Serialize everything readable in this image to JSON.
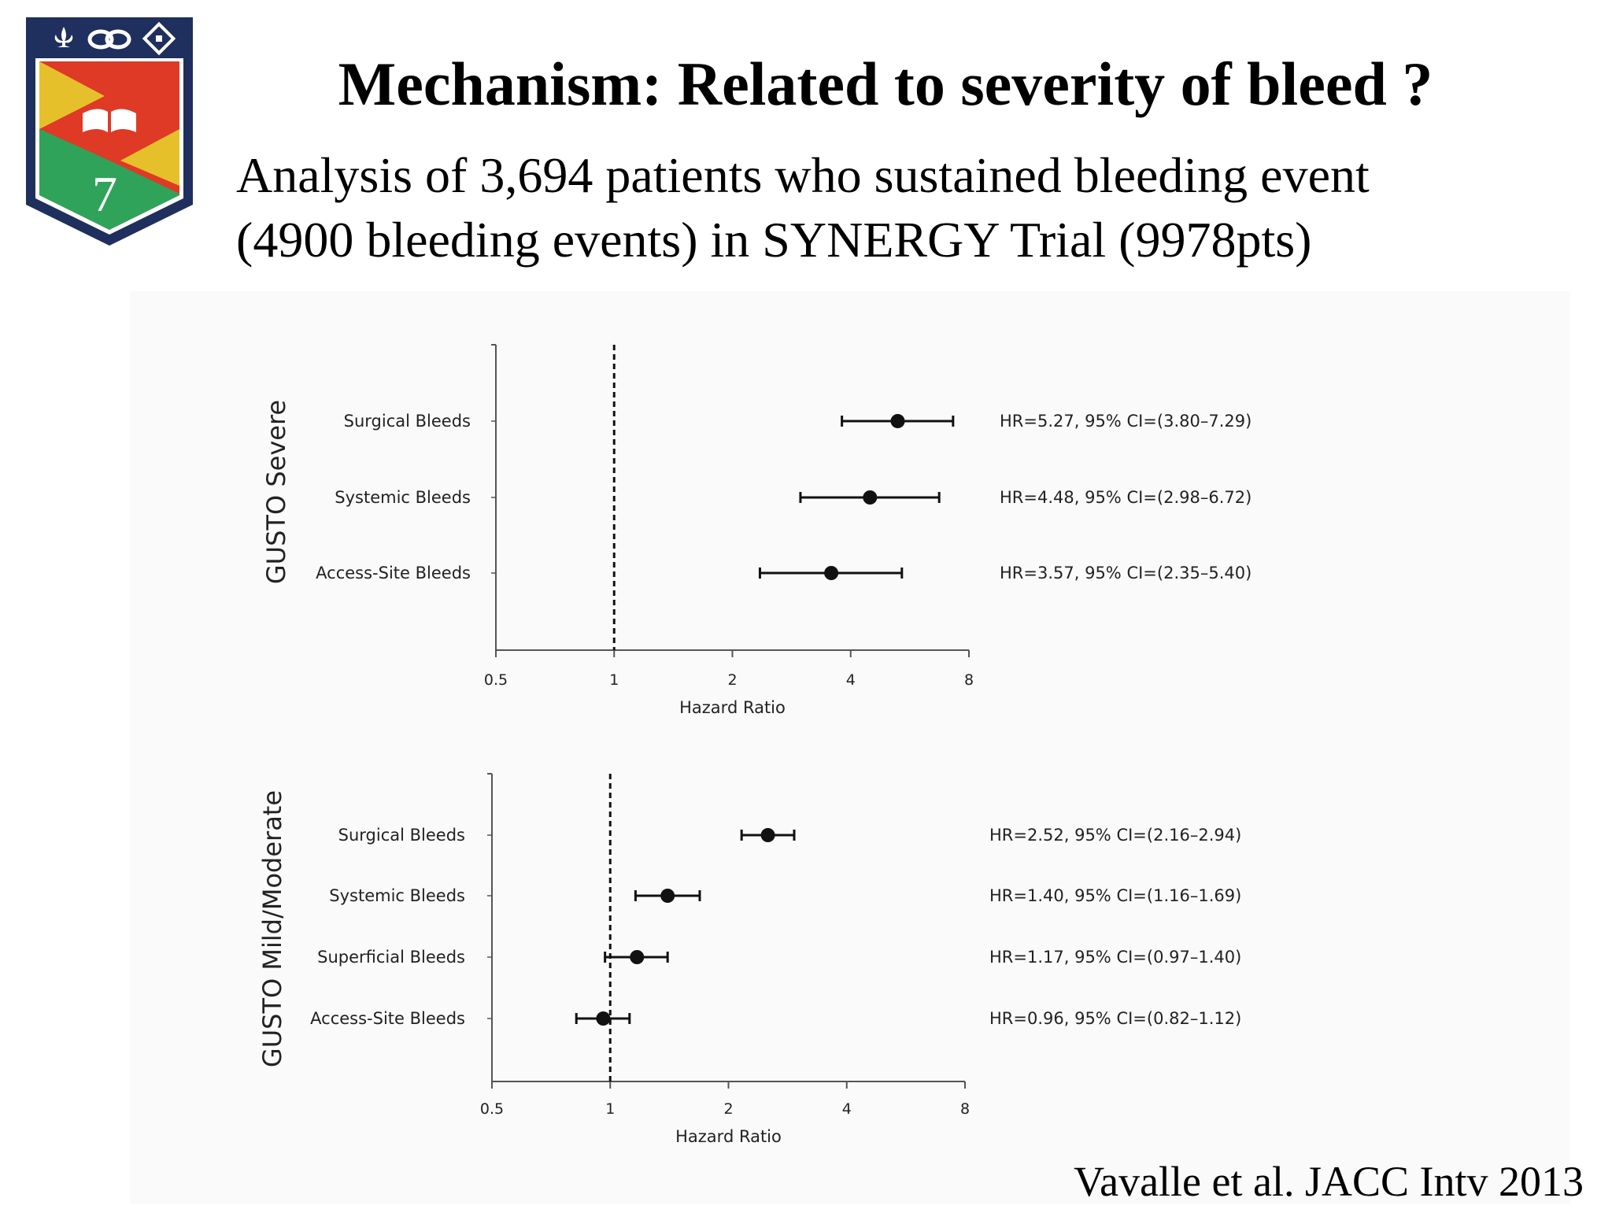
{
  "slide": {
    "title": "Mechanism: Related to severity of bleed ?",
    "subtitle_lines": [
      "Analysis of 3,694 patients who sustained bleeding  event",
      "(4900 bleeding events) in SYNERGY Trial (9978pts)"
    ],
    "citation": "Vavalle et al. JACC Intv 2013",
    "logo": {
      "icons": [
        "fleur-de-lis-icon",
        "knot-icon",
        "cross-pattee-icon",
        "open-book-icon"
      ],
      "numeral": "7",
      "colors": {
        "navy": "#1f2f5e",
        "yellow": "#e6c02a",
        "red": "#de3a26",
        "green": "#2fa35a",
        "white": "#ffffff"
      }
    }
  },
  "chart_data": [
    {
      "type": "forest",
      "panel_label": "GUSTO Severe",
      "xlabel": "Hazard Ratio",
      "x_scale": "log2",
      "xlim": [
        0.5,
        8
      ],
      "x_ticks": [
        0.5,
        1,
        2,
        4,
        8
      ],
      "x_tick_labels": [
        "0.5",
        "1",
        "2",
        "4",
        "8"
      ],
      "reference_line": 1,
      "rows": [
        {
          "label": "Surgical Bleeds",
          "hr": 5.27,
          "ci": [
            3.8,
            7.29
          ],
          "annotation": "HR=5.27, 95% CI=(3.80–7.29)"
        },
        {
          "label": "Systemic Bleeds",
          "hr": 4.48,
          "ci": [
            2.98,
            6.72
          ],
          "annotation": "HR=4.48, 95% CI=(2.98–6.72)"
        },
        {
          "label": "Access-Site Bleeds",
          "hr": 3.57,
          "ci": [
            2.35,
            5.4
          ],
          "annotation": "HR=3.57, 95% CI=(2.35–5.40)"
        }
      ]
    },
    {
      "type": "forest",
      "panel_label": "GUSTO Mild/Moderate",
      "xlabel": "Hazard Ratio",
      "x_scale": "log2",
      "xlim": [
        0.5,
        8
      ],
      "x_ticks": [
        0.5,
        1,
        2,
        4,
        8
      ],
      "x_tick_labels": [
        "0.5",
        "1",
        "2",
        "4",
        "8"
      ],
      "reference_line": 1,
      "rows": [
        {
          "label": "Surgical Bleeds",
          "hr": 2.52,
          "ci": [
            2.16,
            2.94
          ],
          "annotation": "HR=2.52, 95% CI=(2.16–2.94)"
        },
        {
          "label": "Systemic Bleeds",
          "hr": 1.4,
          "ci": [
            1.16,
            1.69
          ],
          "annotation": "HR=1.40, 95% CI=(1.16–1.69)"
        },
        {
          "label": "Superficial Bleeds",
          "hr": 1.17,
          "ci": [
            0.97,
            1.4
          ],
          "annotation": "HR=1.17, 95% CI=(0.97–1.40)"
        },
        {
          "label": "Access-Site Bleeds",
          "hr": 0.96,
          "ci": [
            0.82,
            1.12
          ],
          "annotation": "HR=0.96, 95% CI=(0.82–1.12)"
        }
      ]
    }
  ]
}
